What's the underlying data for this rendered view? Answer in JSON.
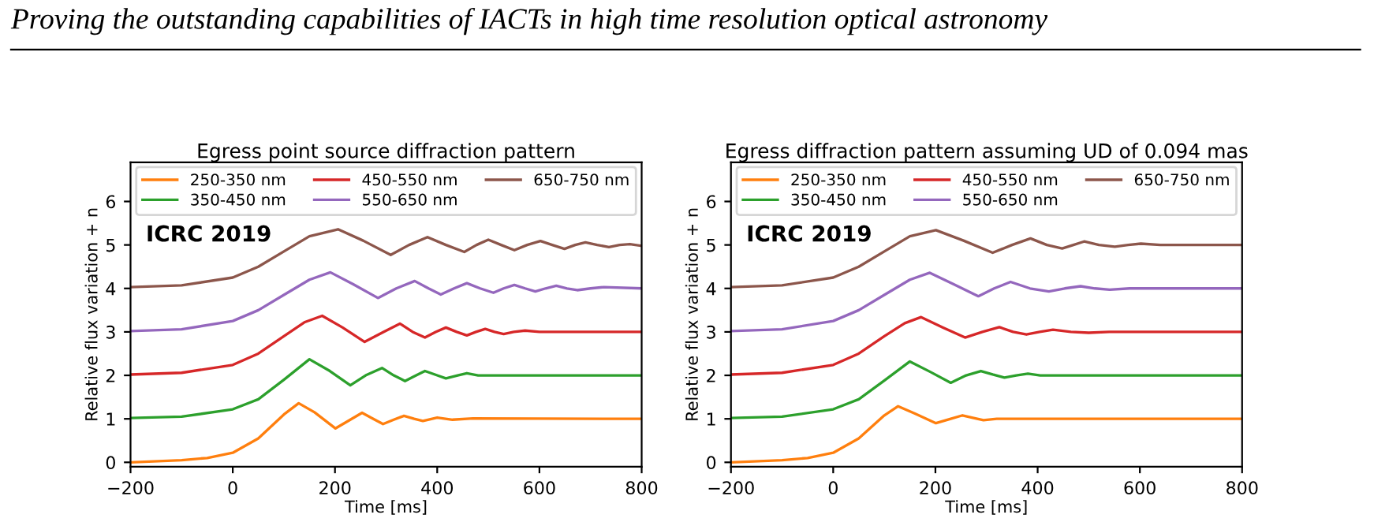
{
  "chart_data": [
    {
      "type": "other",
      "title": "Proving the outstanding capabilities of IACTs in high time resolution optical astronomy"
    },
    {
      "type": "line",
      "title": "Egress point source diffraction pattern",
      "xlabel": "Time [ms]",
      "ylabel": "Relative flux variation + n",
      "annotations": [
        "ICRC 2019"
      ],
      "xlim": [
        -200,
        800
      ],
      "ylim": [
        -0.1,
        6.9
      ],
      "xticks": [
        {
          "value": -200,
          "label": "−200"
        },
        0,
        200,
        400,
        600,
        800
      ],
      "yticks": [
        0,
        1,
        2,
        3,
        4,
        5,
        6
      ],
      "legend": "top",
      "grid": false,
      "series": [
        {
          "name": "250-350 nm",
          "color": "#ff7f0e",
          "x": [
            -200,
            -100,
            -50,
            0,
            50,
            100,
            129,
            160,
            201,
            230,
            253,
            275,
            294,
            315,
            335,
            355,
            372,
            400,
            430,
            470,
            800
          ],
          "values": [
            0.0,
            0.05,
            0.1,
            0.22,
            0.55,
            1.1,
            1.36,
            1.15,
            0.78,
            0.98,
            1.14,
            1.0,
            0.88,
            0.98,
            1.07,
            1.0,
            0.95,
            1.03,
            0.98,
            1.01,
            1.0
          ]
        },
        {
          "name": "350-450 nm",
          "color": "#2ca02c",
          "x": [
            -200,
            -100,
            0,
            50,
            100,
            150,
            190,
            230,
            260,
            292,
            315,
            337,
            355,
            376,
            400,
            417,
            440,
            458,
            480,
            800
          ],
          "values": [
            1.02,
            1.05,
            1.22,
            1.45,
            1.9,
            2.37,
            2.1,
            1.77,
            2.0,
            2.17,
            2.0,
            1.87,
            1.98,
            2.1,
            2.0,
            1.93,
            2.0,
            2.05,
            2.0,
            2.0
          ]
        },
        {
          "name": "450-550 nm",
          "color": "#d62728",
          "x": [
            -200,
            -100,
            0,
            50,
            100,
            140,
            175,
            215,
            258,
            295,
            327,
            352,
            376,
            397,
            417,
            438,
            458,
            476,
            494,
            512,
            530,
            550,
            572,
            600,
            800
          ],
          "values": [
            2.02,
            2.06,
            2.24,
            2.5,
            2.9,
            3.22,
            3.37,
            3.1,
            2.77,
            3.0,
            3.19,
            3.0,
            2.87,
            3.0,
            3.1,
            3.0,
            2.92,
            3.0,
            3.07,
            3.0,
            2.95,
            3.0,
            3.03,
            3.0,
            3.0
          ]
        },
        {
          "name": "550-650 nm",
          "color": "#9467bd",
          "x": [
            -200,
            -100,
            0,
            50,
            100,
            150,
            191,
            235,
            284,
            320,
            356,
            383,
            407,
            433,
            458,
            484,
            510,
            530,
            551,
            572,
            592,
            612,
            633,
            654,
            674,
            700,
            726,
            800
          ],
          "values": [
            3.02,
            3.06,
            3.25,
            3.5,
            3.85,
            4.2,
            4.37,
            4.1,
            3.78,
            4.0,
            4.17,
            4.0,
            3.86,
            4.0,
            4.12,
            4.0,
            3.9,
            4.0,
            4.08,
            4.0,
            3.93,
            4.0,
            4.06,
            4.0,
            3.96,
            4.0,
            4.03,
            4.0
          ]
        },
        {
          "name": "650-750 nm",
          "color": "#8c564b",
          "x": [
            -200,
            -100,
            0,
            50,
            100,
            150,
            206,
            255,
            309,
            345,
            381,
            417,
            453,
            477,
            500,
            525,
            551,
            576,
            602,
            625,
            649,
            670,
            690,
            713,
            736,
            757,
            777,
            800
          ],
          "values": [
            4.03,
            4.07,
            4.25,
            4.5,
            4.85,
            5.2,
            5.36,
            5.1,
            4.77,
            5.0,
            5.18,
            5.0,
            4.84,
            5.0,
            5.12,
            5.0,
            4.88,
            5.0,
            5.09,
            5.0,
            4.91,
            5.0,
            5.06,
            5.0,
            4.95,
            5.0,
            5.02,
            4.98
          ]
        }
      ]
    },
    {
      "type": "line",
      "title": "Egress diffraction pattern assuming UD of 0.094 mas",
      "xlabel": "Time [ms]",
      "ylabel": "Relative flux variation + n",
      "annotations": [
        "ICRC 2019"
      ],
      "xlim": [
        -200,
        800
      ],
      "ylim": [
        -0.1,
        6.9
      ],
      "xticks": [
        {
          "value": -200,
          "label": "−200"
        },
        0,
        200,
        400,
        600,
        800
      ],
      "yticks": [
        0,
        1,
        2,
        3,
        4,
        5,
        6
      ],
      "legend": "top",
      "grid": false,
      "series": [
        {
          "name": "250-350 nm",
          "color": "#ff7f0e",
          "x": [
            -200,
            -100,
            -50,
            0,
            50,
            100,
            127,
            160,
            201,
            230,
            253,
            275,
            294,
            320,
            350,
            800
          ],
          "values": [
            0.0,
            0.05,
            0.1,
            0.22,
            0.55,
            1.08,
            1.29,
            1.12,
            0.9,
            1.0,
            1.08,
            1.02,
            0.97,
            1.0,
            1.0,
            1.0
          ]
        },
        {
          "name": "350-450 nm",
          "color": "#2ca02c",
          "x": [
            -200,
            -100,
            0,
            50,
            100,
            150,
            190,
            230,
            260,
            289,
            312,
            335,
            358,
            381,
            405,
            430,
            800
          ],
          "values": [
            1.02,
            1.05,
            1.22,
            1.45,
            1.88,
            2.32,
            2.08,
            1.83,
            2.0,
            2.1,
            2.02,
            1.95,
            2.0,
            2.04,
            2.0,
            2.0,
            2.0
          ]
        },
        {
          "name": "450-550 nm",
          "color": "#d62728",
          "x": [
            -200,
            -100,
            0,
            50,
            100,
            140,
            172,
            215,
            258,
            292,
            325,
            352,
            378,
            404,
            430,
            465,
            500,
            540,
            800
          ],
          "values": [
            2.02,
            2.06,
            2.24,
            2.5,
            2.9,
            3.2,
            3.34,
            3.1,
            2.87,
            3.0,
            3.11,
            3.0,
            2.94,
            3.0,
            3.05,
            3.0,
            2.98,
            3.0,
            3.0
          ]
        },
        {
          "name": "550-650 nm",
          "color": "#9467bd",
          "x": [
            -200,
            -100,
            0,
            50,
            100,
            150,
            189,
            235,
            284,
            315,
            347,
            385,
            422,
            453,
            484,
            512,
            541,
            580,
            800
          ],
          "values": [
            3.02,
            3.06,
            3.25,
            3.5,
            3.85,
            4.2,
            4.36,
            4.1,
            3.82,
            4.0,
            4.15,
            4.0,
            3.93,
            4.0,
            4.05,
            4.0,
            3.97,
            4.0,
            4.0
          ]
        },
        {
          "name": "650-750 nm",
          "color": "#8c564b",
          "x": [
            -200,
            -100,
            0,
            50,
            100,
            150,
            201,
            255,
            312,
            350,
            386,
            418,
            448,
            470,
            491,
            520,
            551,
            577,
            602,
            640,
            800
          ],
          "values": [
            4.03,
            4.07,
            4.25,
            4.5,
            4.85,
            5.2,
            5.34,
            5.1,
            4.82,
            5.0,
            5.15,
            5.0,
            4.92,
            5.0,
            5.08,
            5.0,
            4.96,
            5.0,
            5.03,
            5.0,
            5.0
          ]
        }
      ]
    }
  ]
}
